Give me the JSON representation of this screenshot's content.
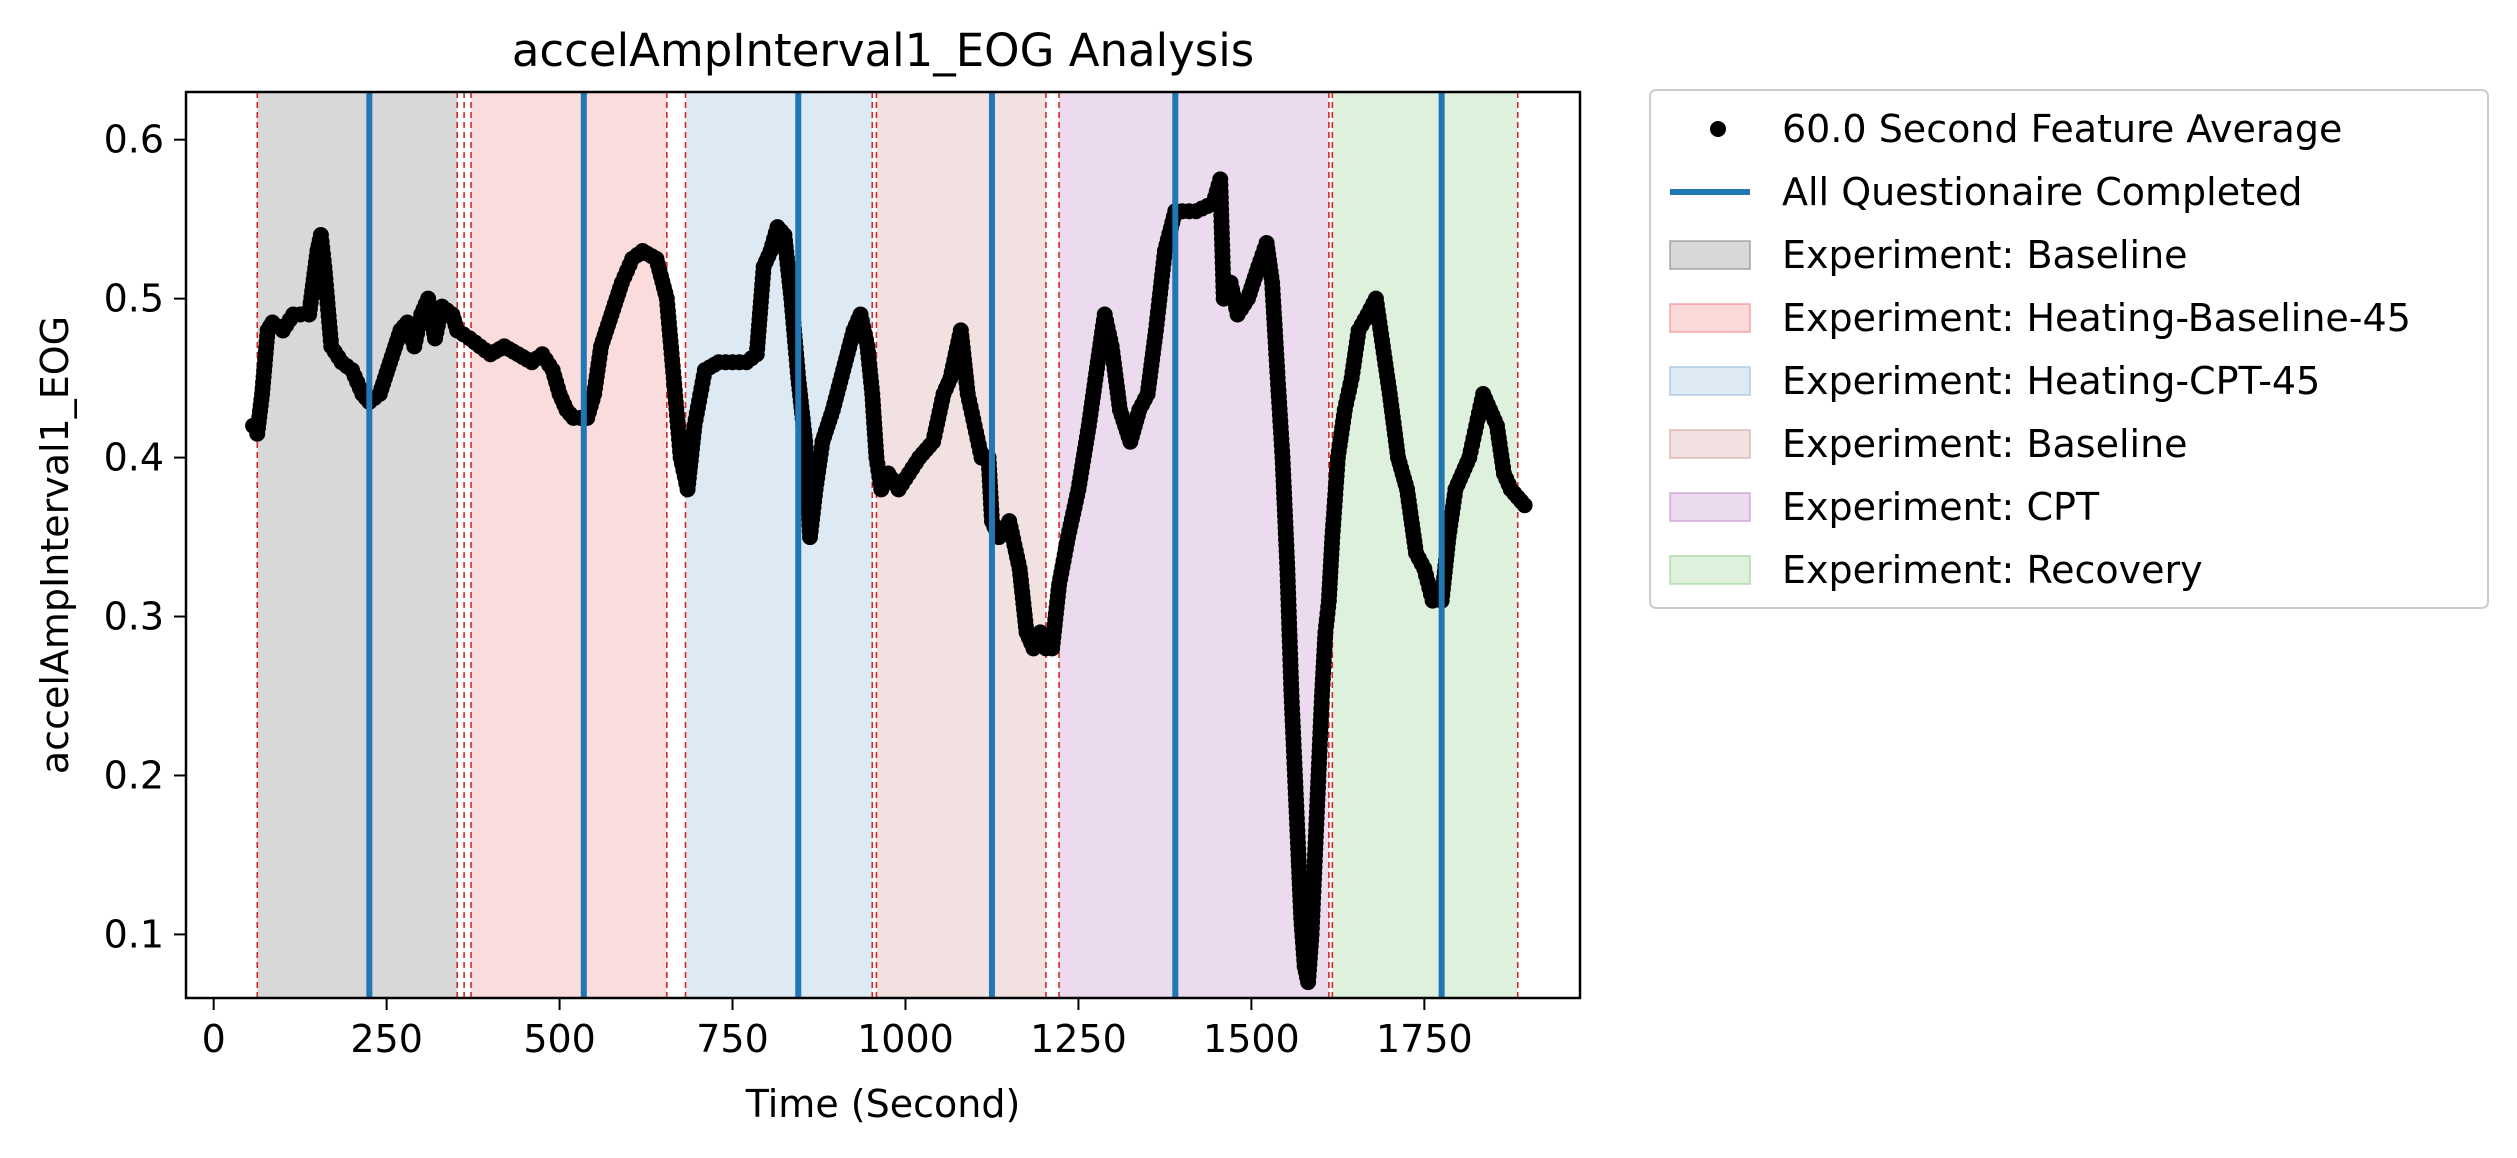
{
  "chart_data": {
    "type": "scatter",
    "title": "accelAmpInterval1_EOG Analysis",
    "xlabel": "Time (Second)",
    "ylabel": "accelAmpInterval1_EOG",
    "xlim": [
      -40,
      1975
    ],
    "ylim": [
      0.06,
      0.63
    ],
    "xticks": [
      0,
      250,
      500,
      750,
      1000,
      1250,
      1500,
      1750
    ],
    "yticks": [
      0.1,
      0.2,
      0.3,
      0.4,
      0.5,
      0.6
    ],
    "grid": false,
    "legend_position": "outside-right",
    "colors": {
      "points": "#000000",
      "questionnaire_line": "#1f77b4",
      "boundary_line": "#d62728"
    },
    "legend": [
      {
        "label": "60.0 Second Feature Average",
        "kind": "marker",
        "color": "#000000"
      },
      {
        "label": "All Questionaire Completed",
        "kind": "line",
        "color": "#1f77b4"
      },
      {
        "label": "Experiment: Baseline",
        "kind": "patch",
        "color": "#7f7f7f"
      },
      {
        "label": "Experiment: Heating-Baseline-45",
        "kind": "patch",
        "color": "#f08080"
      },
      {
        "label": "Experiment: Heating-CPT-45",
        "kind": "patch",
        "color": "#8fb8dc"
      },
      {
        "label": "Experiment: Baseline",
        "kind": "patch",
        "color": "#d49a9a"
      },
      {
        "label": "Experiment: CPT",
        "kind": "patch",
        "color": "#c088c8"
      },
      {
        "label": "Experiment: Recovery",
        "kind": "patch",
        "color": "#8fd08f"
      }
    ],
    "regions": [
      {
        "start": 63,
        "end": 352,
        "color": "#7f7f7f",
        "alpha": 0.3
      },
      {
        "start": 372,
        "end": 655,
        "color": "#f08080",
        "alpha": 0.28
      },
      {
        "start": 682,
        "end": 952,
        "color": "#8fb8dc",
        "alpha": 0.3
      },
      {
        "start": 958,
        "end": 1203,
        "color": "#d49a9a",
        "alpha": 0.3
      },
      {
        "start": 1222,
        "end": 1612,
        "color": "#c088c8",
        "alpha": 0.3
      },
      {
        "start": 1617,
        "end": 1885,
        "color": "#8fd08f",
        "alpha": 0.3
      }
    ],
    "boundaries": [
      63,
      352,
      362,
      372,
      655,
      682,
      952,
      958,
      1203,
      1222,
      1612,
      1617,
      1885
    ],
    "questionnaire_times": [
      225,
      535,
      845,
      1125,
      1390,
      1775
    ],
    "series": [
      {
        "name": "60.0 Second Feature Average",
        "points": [
          [
            57,
            0.42
          ],
          [
            63,
            0.415
          ],
          [
            70,
            0.44
          ],
          [
            78,
            0.48
          ],
          [
            85,
            0.485
          ],
          [
            100,
            0.48
          ],
          [
            115,
            0.49
          ],
          [
            125,
            0.49
          ],
          [
            138,
            0.49
          ],
          [
            150,
            0.53
          ],
          [
            155,
            0.54
          ],
          [
            160,
            0.52
          ],
          [
            170,
            0.47
          ],
          [
            185,
            0.46
          ],
          [
            200,
            0.455
          ],
          [
            215,
            0.44
          ],
          [
            225,
            0.435
          ],
          [
            240,
            0.44
          ],
          [
            255,
            0.46
          ],
          [
            270,
            0.48
          ],
          [
            280,
            0.485
          ],
          [
            290,
            0.47
          ],
          [
            300,
            0.49
          ],
          [
            310,
            0.5
          ],
          [
            320,
            0.475
          ],
          [
            330,
            0.495
          ],
          [
            345,
            0.49
          ],
          [
            352,
            0.48
          ],
          [
            370,
            0.475
          ],
          [
            385,
            0.47
          ],
          [
            400,
            0.465
          ],
          [
            420,
            0.47
          ],
          [
            440,
            0.465
          ],
          [
            460,
            0.46
          ],
          [
            475,
            0.465
          ],
          [
            490,
            0.455
          ],
          [
            500,
            0.44
          ],
          [
            510,
            0.43
          ],
          [
            520,
            0.425
          ],
          [
            530,
            0.425
          ],
          [
            540,
            0.425
          ],
          [
            550,
            0.44
          ],
          [
            560,
            0.47
          ],
          [
            575,
            0.49
          ],
          [
            590,
            0.51
          ],
          [
            605,
            0.525
          ],
          [
            620,
            0.53
          ],
          [
            640,
            0.525
          ],
          [
            655,
            0.5
          ],
          [
            665,
            0.45
          ],
          [
            675,
            0.4
          ],
          [
            685,
            0.38
          ],
          [
            695,
            0.42
          ],
          [
            710,
            0.455
          ],
          [
            730,
            0.46
          ],
          [
            750,
            0.46
          ],
          [
            770,
            0.46
          ],
          [
            785,
            0.465
          ],
          [
            795,
            0.52
          ],
          [
            805,
            0.53
          ],
          [
            815,
            0.545
          ],
          [
            825,
            0.54
          ],
          [
            835,
            0.5
          ],
          [
            845,
            0.45
          ],
          [
            855,
            0.41
          ],
          [
            862,
            0.35
          ],
          [
            870,
            0.38
          ],
          [
            880,
            0.41
          ],
          [
            895,
            0.43
          ],
          [
            910,
            0.455
          ],
          [
            925,
            0.48
          ],
          [
            935,
            0.49
          ],
          [
            945,
            0.47
          ],
          [
            952,
            0.44
          ],
          [
            958,
            0.4
          ],
          [
            965,
            0.38
          ],
          [
            975,
            0.39
          ],
          [
            990,
            0.38
          ],
          [
            1005,
            0.39
          ],
          [
            1020,
            0.4
          ],
          [
            1040,
            0.41
          ],
          [
            1055,
            0.44
          ],
          [
            1065,
            0.45
          ],
          [
            1080,
            0.48
          ],
          [
            1090,
            0.44
          ],
          [
            1100,
            0.42
          ],
          [
            1110,
            0.4
          ],
          [
            1120,
            0.4
          ],
          [
            1125,
            0.36
          ],
          [
            1135,
            0.35
          ],
          [
            1150,
            0.36
          ],
          [
            1165,
            0.33
          ],
          [
            1175,
            0.29
          ],
          [
            1185,
            0.28
          ],
          [
            1195,
            0.29
          ],
          [
            1203,
            0.28
          ],
          [
            1212,
            0.28
          ],
          [
            1222,
            0.32
          ],
          [
            1235,
            0.35
          ],
          [
            1250,
            0.38
          ],
          [
            1265,
            0.42
          ],
          [
            1278,
            0.46
          ],
          [
            1288,
            0.49
          ],
          [
            1298,
            0.47
          ],
          [
            1310,
            0.43
          ],
          [
            1325,
            0.41
          ],
          [
            1338,
            0.43
          ],
          [
            1350,
            0.44
          ],
          [
            1362,
            0.48
          ],
          [
            1375,
            0.53
          ],
          [
            1390,
            0.555
          ],
          [
            1420,
            0.555
          ],
          [
            1445,
            0.56
          ],
          [
            1455,
            0.575
          ],
          [
            1460,
            0.5
          ],
          [
            1470,
            0.51
          ],
          [
            1480,
            0.49
          ],
          [
            1495,
            0.5
          ],
          [
            1510,
            0.52
          ],
          [
            1522,
            0.535
          ],
          [
            1530,
            0.51
          ],
          [
            1538,
            0.45
          ],
          [
            1545,
            0.4
          ],
          [
            1552,
            0.33
          ],
          [
            1558,
            0.25
          ],
          [
            1563,
            0.2
          ],
          [
            1568,
            0.15
          ],
          [
            1572,
            0.11
          ],
          [
            1577,
            0.08
          ],
          [
            1582,
            0.07
          ],
          [
            1587,
            0.1
          ],
          [
            1592,
            0.15
          ],
          [
            1597,
            0.2
          ],
          [
            1602,
            0.25
          ],
          [
            1607,
            0.29
          ],
          [
            1612,
            0.31
          ],
          [
            1617,
            0.35
          ],
          [
            1625,
            0.4
          ],
          [
            1635,
            0.43
          ],
          [
            1645,
            0.45
          ],
          [
            1655,
            0.48
          ],
          [
            1668,
            0.49
          ],
          [
            1680,
            0.5
          ],
          [
            1690,
            0.47
          ],
          [
            1700,
            0.44
          ],
          [
            1712,
            0.4
          ],
          [
            1725,
            0.38
          ],
          [
            1738,
            0.34
          ],
          [
            1750,
            0.33
          ],
          [
            1762,
            0.31
          ],
          [
            1775,
            0.31
          ],
          [
            1785,
            0.35
          ],
          [
            1795,
            0.38
          ],
          [
            1805,
            0.39
          ],
          [
            1815,
            0.4
          ],
          [
            1825,
            0.42
          ],
          [
            1835,
            0.44
          ],
          [
            1845,
            0.43
          ],
          [
            1855,
            0.42
          ],
          [
            1865,
            0.39
          ],
          [
            1875,
            0.38
          ],
          [
            1885,
            0.375
          ],
          [
            1895,
            0.37
          ]
        ]
      }
    ]
  }
}
